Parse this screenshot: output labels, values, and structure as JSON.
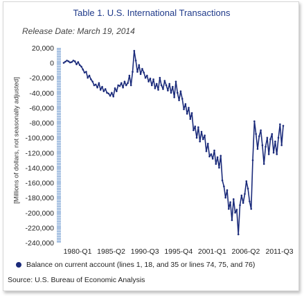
{
  "title": "Table 1. U.S. International Transactions",
  "subtitle": "Release Date: March 19, 2014",
  "legend_label": "Balance on current account (lines 1, 18, and 35 or lines 74, 75, and 76)",
  "source": "Source: U.S. Bureau of Economic Analysis",
  "colors": {
    "series": "#1a2a7a",
    "title": "#1f3a8a",
    "axis_bar": "#a9c3e3"
  },
  "chart_data": {
    "type": "line",
    "title": "Table 1. U.S. International Transactions",
    "ylabel": "[Millions of dollars, not seasonally adjusted]",
    "xlabel": "",
    "ylim": [
      -240000,
      20000
    ],
    "yticks": [
      20000,
      0,
      -20000,
      -40000,
      -60000,
      -80000,
      -100000,
      -120000,
      -140000,
      -160000,
      -180000,
      -200000,
      -220000,
      -240000
    ],
    "ytick_labels": [
      "20,000",
      "0",
      "-20,000",
      "-40,000",
      "-60,000",
      "-80,000",
      "-100,000",
      "-120,000",
      "-140,000",
      "-160,000",
      "-180,000",
      "-200,000",
      "-220,000",
      "-240,000"
    ],
    "xtick_labels": [
      "1980-Q1",
      "1985-Q2",
      "1990-Q3",
      "1995-Q4",
      "2001-Q1",
      "2006-Q2",
      "2011-Q3"
    ],
    "grid": false,
    "legend_position": "bottom",
    "series": [
      {
        "name": "Balance on current account (lines 1, 18, and 35 or lines 74, 75, and 76)",
        "x_start": "1980-Q1",
        "values": [
          0,
          1500,
          3000,
          2000,
          500,
          1000,
          3000,
          2000,
          -2000,
          1000,
          -3000,
          -5000,
          -9000,
          -13000,
          -12000,
          -20000,
          -17000,
          -22000,
          -25000,
          -30000,
          -29000,
          -33000,
          -27000,
          -36000,
          -32000,
          -38000,
          -35000,
          -40000,
          -41000,
          -44000,
          -40000,
          -45000,
          -34000,
          -38000,
          -30000,
          -31000,
          -27000,
          -33000,
          -25000,
          -30000,
          -27000,
          -17000,
          -30000,
          -12000,
          16000,
          3000,
          -12000,
          -3000,
          -15000,
          -8000,
          -13000,
          -20000,
          -17000,
          -25000,
          -21000,
          -30000,
          -22000,
          -34000,
          -28000,
          -36000,
          -20000,
          -30000,
          -35000,
          -24000,
          -30000,
          -37000,
          -28000,
          -40000,
          -32000,
          -46000,
          -25000,
          -40000,
          -50000,
          -38000,
          -48000,
          -62000,
          -55000,
          -68000,
          -60000,
          -75000,
          -67000,
          -90000,
          -85000,
          -100000,
          -86000,
          -105000,
          -92000,
          -102000,
          -97000,
          -118000,
          -108000,
          -125000,
          -122000,
          -128000,
          -117000,
          -135000,
          -126000,
          -140000,
          -124000,
          -157000,
          -165000,
          -180000,
          -170000,
          -195000,
          -186000,
          -210000,
          -182000,
          -200000,
          -196000,
          -229000,
          -190000,
          -177000,
          -187000,
          -175000,
          -158000,
          -168000,
          -185000,
          -195000,
          -130000,
          -78000,
          -95000,
          -115000,
          -98000,
          -90000,
          -110000,
          -135000,
          -112000,
          -100000,
          -122000,
          -102000,
          -95000,
          -120000,
          -105000,
          -122000,
          -100000,
          -82000,
          -110000,
          -84000
        ]
      }
    ]
  }
}
